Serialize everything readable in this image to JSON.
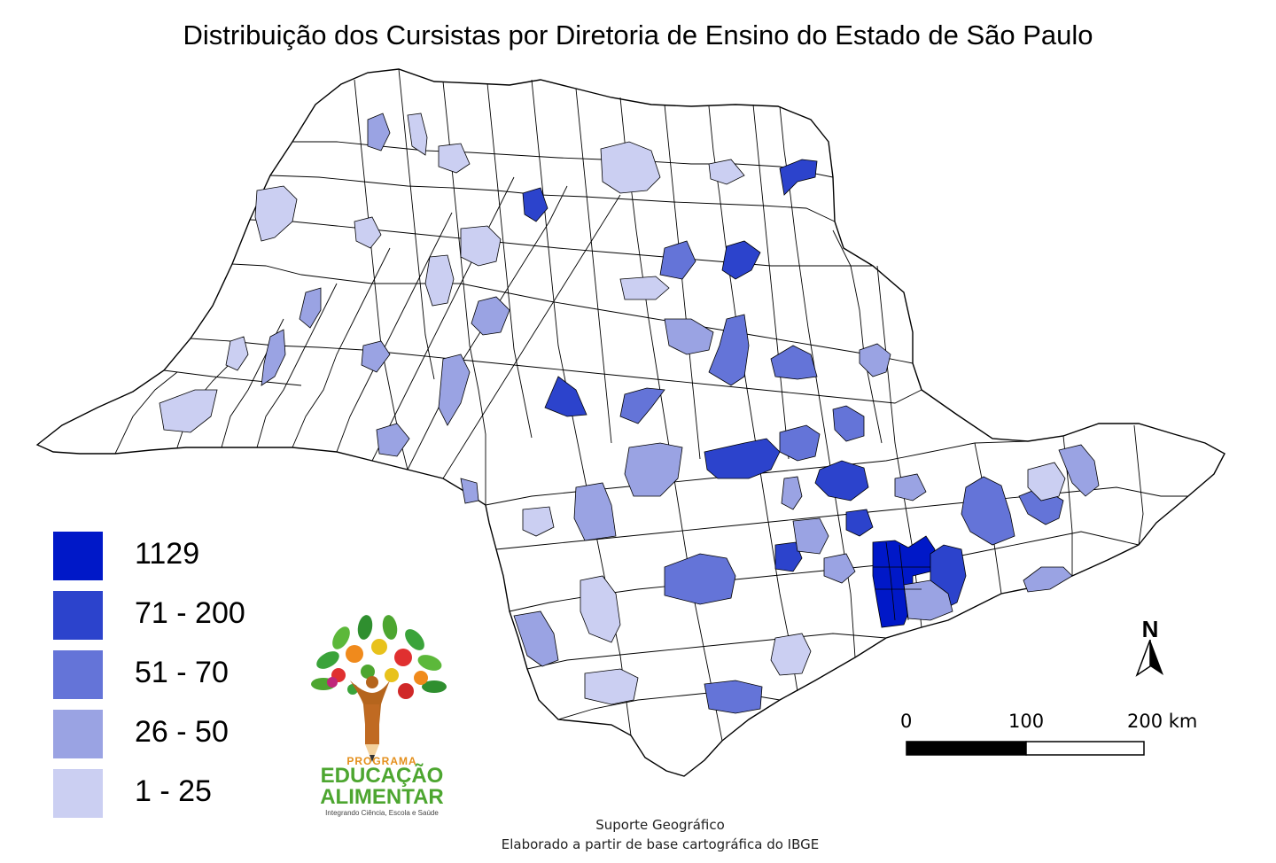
{
  "map": {
    "title": "Distribuição dos Cursistas por Diretoria de Ensino do Estado de São Paulo"
  },
  "legend": {
    "items": [
      {
        "label": "1129",
        "color": "#0018c8"
      },
      {
        "label": "71 - 200",
        "color": "#2c43cc"
      },
      {
        "label": "51 - 70",
        "color": "#6474d8"
      },
      {
        "label": "26 - 50",
        "color": "#9aa3e3"
      },
      {
        "label": "1 - 25",
        "color": "#cbcff2"
      }
    ]
  },
  "logo": {
    "line1": "PROGRAMA",
    "line2": "EDUCAÇÃO",
    "line3": "ALIMENTAR",
    "tagline": "Integrando Ciência, Escola e Saúde"
  },
  "north": {
    "letter": "N",
    "icon": "north-arrow-icon"
  },
  "scale": {
    "label_0": "0",
    "label_100": "100",
    "label_200": "200 km"
  },
  "source": {
    "line1": "Suporte Geográfico",
    "line2": "Elaborado a partir de base cartográfica do IBGE"
  }
}
